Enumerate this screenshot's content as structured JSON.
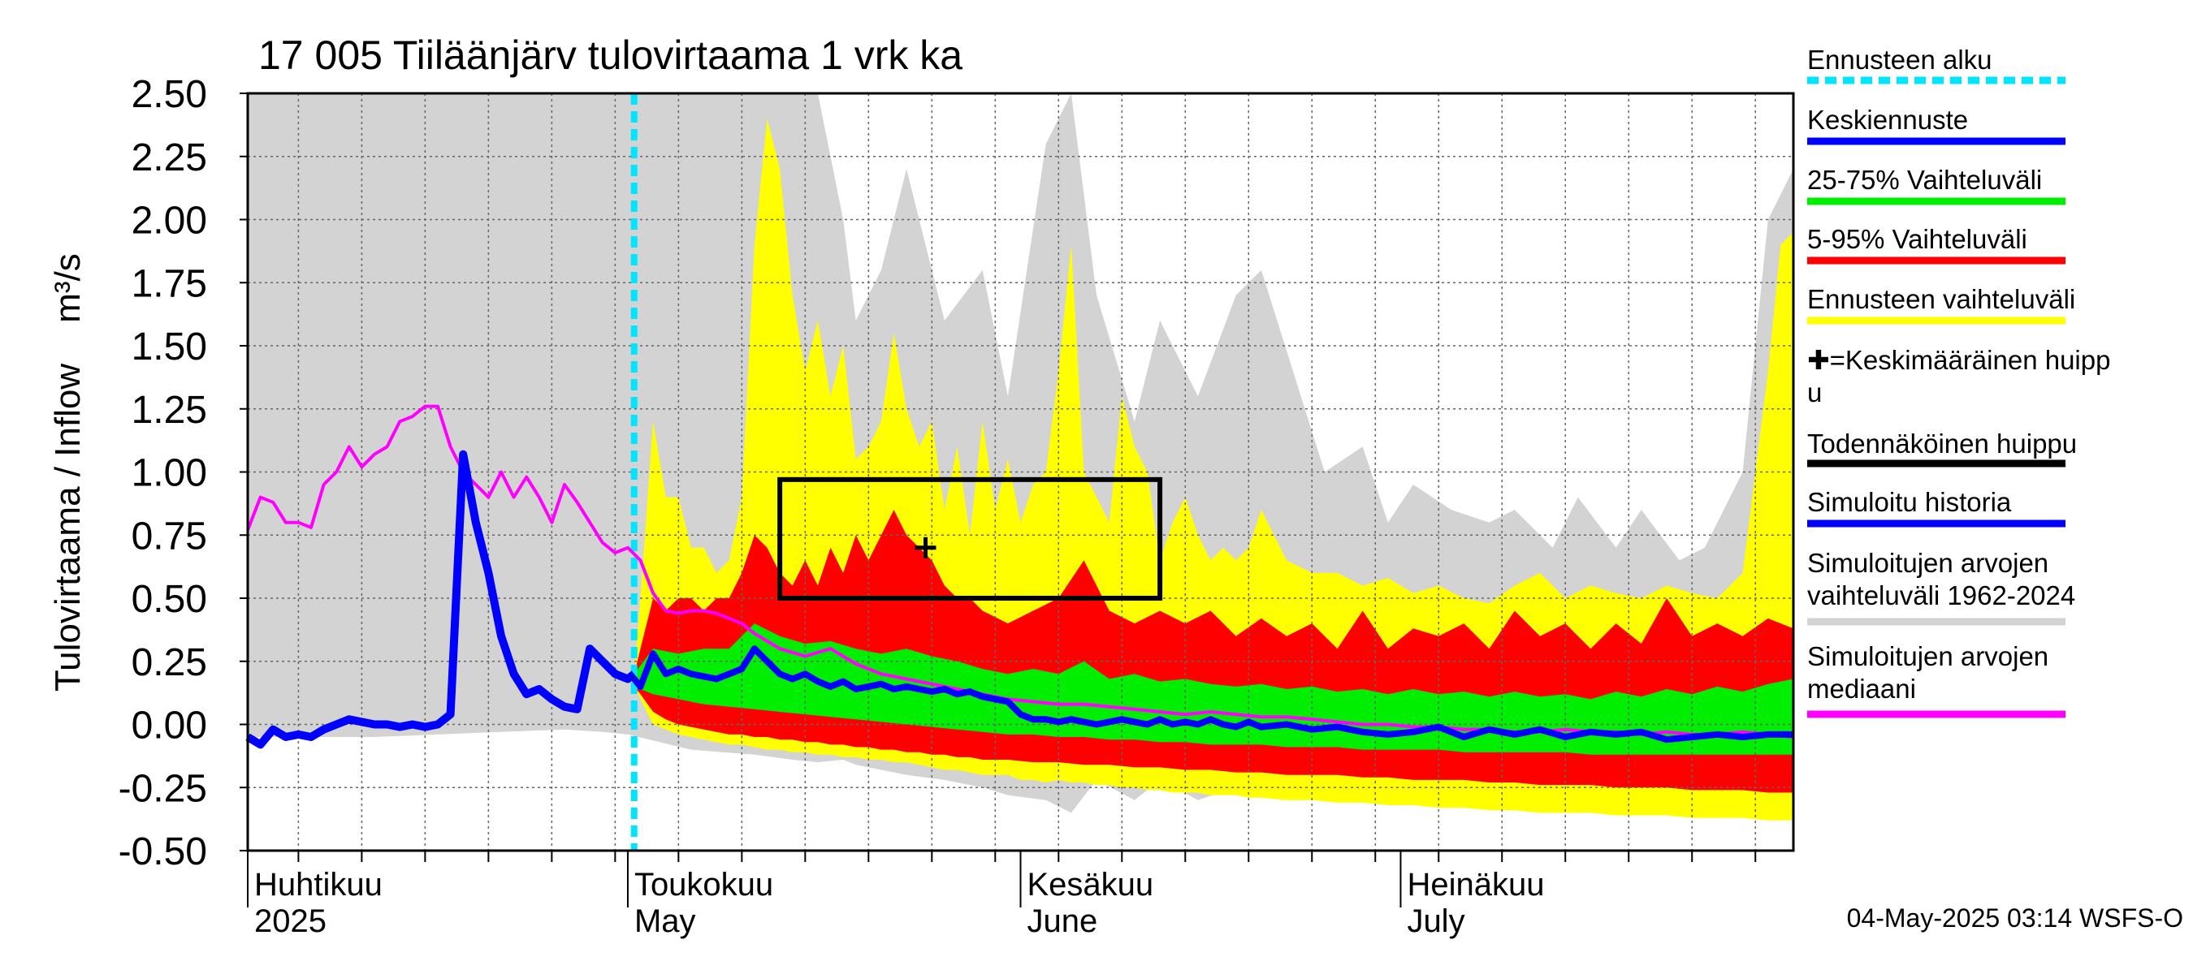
{
  "chart_data": {
    "type": "area",
    "title": "17 005 Tiilaanjarv tulovirtaama 1 vrk ka",
    "title_display": "17 005 Tiiläänjärv tulovirtaama 1 vrk ka",
    "ylabel": "Tulovirtaama / Inflow",
    "yunit": "m³/s",
    "ylim": [
      -0.5,
      2.5
    ],
    "yticks": [
      "2.50",
      "2.25",
      "2.00",
      "1.75",
      "1.50",
      "1.25",
      "1.00",
      "0.75",
      "0.50",
      "0.25",
      "0.00",
      "-0.25",
      "-0.50"
    ],
    "x_day_range": [
      0,
      122
    ],
    "x_start_date": "2025-04-01",
    "month_labels": [
      {
        "fi": "Huhtikuu",
        "en": "2025",
        "day": 0
      },
      {
        "fi": "Toukokuu",
        "en": "May",
        "day": 30
      },
      {
        "fi": "Kesäkuu",
        "en": "June",
        "day": 61
      },
      {
        "fi": "Heinäkuu",
        "en": "July",
        "day": 91
      }
    ],
    "forecast_start_day": 30.5,
    "series": [
      {
        "name": "Simuloitujen arvojen vaihteluväli 1962-2024",
        "kind": "band",
        "color": "#d3d3d3",
        "x": [
          0,
          5,
          10,
          15,
          20,
          25,
          28,
          30,
          35,
          40,
          43,
          45,
          47,
          48,
          50,
          52,
          55,
          58,
          60,
          63,
          65,
          67,
          70,
          72,
          75,
          78,
          80,
          85,
          88,
          90,
          92,
          95,
          98,
          100,
          103,
          105,
          108,
          110,
          113,
          115,
          118,
          120,
          122
        ],
        "upper": [
          2.5,
          2.5,
          2.5,
          2.5,
          2.5,
          2.5,
          2.5,
          2.5,
          2.5,
          2.5,
          2.5,
          2.5,
          2.0,
          1.6,
          1.8,
          2.2,
          1.6,
          1.8,
          1.3,
          2.3,
          2.5,
          1.7,
          1.2,
          1.6,
          1.3,
          1.7,
          1.8,
          1.0,
          1.1,
          0.8,
          0.95,
          0.85,
          0.8,
          0.85,
          0.7,
          0.9,
          0.7,
          0.85,
          0.65,
          0.7,
          1.0,
          2.0,
          2.2
        ],
        "lower": [
          -0.05,
          -0.05,
          -0.05,
          -0.04,
          -0.03,
          -0.02,
          -0.03,
          -0.04,
          -0.1,
          -0.12,
          -0.14,
          -0.15,
          -0.14,
          -0.16,
          -0.18,
          -0.2,
          -0.22,
          -0.25,
          -0.28,
          -0.3,
          -0.35,
          -0.22,
          -0.3,
          -0.22,
          -0.3,
          -0.25,
          -0.2,
          -0.25,
          -0.3,
          -0.22,
          -0.25,
          -0.28,
          -0.3,
          -0.2,
          -0.25,
          -0.28,
          -0.25,
          -0.22,
          -0.3,
          -0.25,
          -0.32,
          -0.22,
          -0.28
        ]
      },
      {
        "name": "Ennusteen vaihteluväli",
        "kind": "band",
        "color": "#ffff00",
        "x": [
          30.5,
          31,
          32,
          33,
          34,
          35,
          36,
          37,
          38,
          39,
          40,
          41,
          42,
          43,
          44,
          45,
          46,
          47,
          48,
          49,
          50,
          51,
          52,
          53,
          54,
          55,
          56,
          57,
          58,
          59,
          60,
          61,
          62,
          63,
          64,
          65,
          66,
          67,
          68,
          69,
          70,
          71,
          72,
          73,
          74,
          75,
          76,
          77,
          78,
          79,
          80,
          82,
          84,
          86,
          88,
          90,
          92,
          94,
          96,
          98,
          100,
          102,
          104,
          106,
          108,
          110,
          112,
          114,
          116,
          118,
          120,
          121,
          122
        ],
        "upper": [
          0.2,
          0.5,
          1.2,
          0.9,
          0.9,
          0.7,
          0.7,
          0.6,
          0.65,
          0.9,
          1.9,
          2.4,
          2.2,
          1.7,
          1.4,
          1.6,
          1.3,
          1.5,
          1.05,
          1.1,
          1.2,
          1.55,
          1.25,
          1.1,
          1.2,
          0.85,
          1.1,
          0.75,
          1.2,
          0.85,
          1.05,
          0.8,
          0.95,
          1.0,
          1.4,
          1.9,
          1.0,
          0.9,
          0.8,
          1.3,
          1.1,
          1.0,
          0.65,
          0.8,
          0.9,
          0.75,
          0.65,
          0.7,
          0.65,
          0.7,
          0.85,
          0.65,
          0.6,
          0.6,
          0.55,
          0.58,
          0.52,
          0.55,
          0.5,
          0.48,
          0.55,
          0.6,
          0.5,
          0.55,
          0.52,
          0.5,
          0.55,
          0.52,
          0.5,
          0.6,
          1.4,
          1.9,
          1.95
        ],
        "lower": [
          0.15,
          0.1,
          0.0,
          -0.02,
          -0.04,
          -0.05,
          -0.06,
          -0.07,
          -0.08,
          -0.08,
          -0.09,
          -0.1,
          -0.1,
          -0.11,
          -0.11,
          -0.12,
          -0.12,
          -0.13,
          -0.13,
          -0.14,
          -0.14,
          -0.15,
          -0.15,
          -0.16,
          -0.17,
          -0.18,
          -0.18,
          -0.19,
          -0.2,
          -0.2,
          -0.2,
          -0.22,
          -0.22,
          -0.23,
          -0.22,
          -0.23,
          -0.23,
          -0.24,
          -0.24,
          -0.25,
          -0.25,
          -0.26,
          -0.26,
          -0.27,
          -0.27,
          -0.27,
          -0.28,
          -0.28,
          -0.28,
          -0.29,
          -0.29,
          -0.3,
          -0.3,
          -0.31,
          -0.31,
          -0.32,
          -0.32,
          -0.33,
          -0.33,
          -0.34,
          -0.34,
          -0.35,
          -0.35,
          -0.35,
          -0.36,
          -0.36,
          -0.36,
          -0.37,
          -0.37,
          -0.37,
          -0.38,
          -0.38,
          -0.38
        ]
      },
      {
        "name": "5-95% Vaihteluväli",
        "kind": "band",
        "color": "#ff0000",
        "x": [
          30.5,
          31,
          32,
          33,
          34,
          35,
          36,
          37,
          38,
          39,
          40,
          41,
          42,
          43,
          44,
          45,
          46,
          47,
          48,
          49,
          50,
          51,
          52,
          53,
          54,
          55,
          56,
          57,
          58,
          60,
          62,
          64,
          66,
          68,
          70,
          72,
          74,
          76,
          78,
          80,
          82,
          84,
          86,
          88,
          90,
          92,
          94,
          96,
          98,
          100,
          102,
          104,
          106,
          108,
          110,
          112,
          114,
          116,
          118,
          120,
          122
        ],
        "upper": [
          0.2,
          0.3,
          0.5,
          0.45,
          0.5,
          0.5,
          0.45,
          0.5,
          0.5,
          0.6,
          0.75,
          0.7,
          0.6,
          0.55,
          0.65,
          0.55,
          0.7,
          0.6,
          0.75,
          0.65,
          0.75,
          0.85,
          0.75,
          0.7,
          0.65,
          0.55,
          0.5,
          0.5,
          0.45,
          0.4,
          0.45,
          0.5,
          0.65,
          0.45,
          0.4,
          0.45,
          0.4,
          0.45,
          0.35,
          0.42,
          0.35,
          0.4,
          0.3,
          0.45,
          0.3,
          0.38,
          0.35,
          0.4,
          0.3,
          0.45,
          0.35,
          0.4,
          0.3,
          0.4,
          0.32,
          0.5,
          0.35,
          0.4,
          0.35,
          0.42,
          0.38
        ],
        "lower": [
          0.15,
          0.12,
          0.05,
          0.02,
          0.0,
          -0.01,
          -0.02,
          -0.03,
          -0.04,
          -0.04,
          -0.05,
          -0.05,
          -0.06,
          -0.06,
          -0.07,
          -0.07,
          -0.08,
          -0.08,
          -0.09,
          -0.09,
          -0.1,
          -0.1,
          -0.11,
          -0.11,
          -0.12,
          -0.12,
          -0.13,
          -0.13,
          -0.14,
          -0.14,
          -0.15,
          -0.15,
          -0.16,
          -0.16,
          -0.17,
          -0.17,
          -0.18,
          -0.18,
          -0.19,
          -0.19,
          -0.2,
          -0.2,
          -0.2,
          -0.21,
          -0.21,
          -0.22,
          -0.22,
          -0.22,
          -0.23,
          -0.23,
          -0.24,
          -0.24,
          -0.24,
          -0.25,
          -0.25,
          -0.25,
          -0.26,
          -0.26,
          -0.26,
          -0.27,
          -0.27
        ]
      },
      {
        "name": "25-75% Vaihteluväli",
        "kind": "band",
        "color": "#00ee00",
        "x": [
          30.5,
          32,
          34,
          36,
          38,
          40,
          42,
          44,
          46,
          48,
          50,
          52,
          54,
          56,
          58,
          60,
          62,
          64,
          66,
          68,
          70,
          72,
          74,
          76,
          78,
          80,
          82,
          84,
          86,
          88,
          90,
          92,
          94,
          96,
          98,
          100,
          102,
          104,
          106,
          108,
          110,
          112,
          114,
          116,
          118,
          120,
          122
        ],
        "upper": [
          0.2,
          0.3,
          0.28,
          0.3,
          0.3,
          0.4,
          0.35,
          0.32,
          0.33,
          0.3,
          0.28,
          0.3,
          0.27,
          0.25,
          0.22,
          0.2,
          0.22,
          0.2,
          0.25,
          0.18,
          0.2,
          0.17,
          0.18,
          0.16,
          0.15,
          0.16,
          0.14,
          0.15,
          0.13,
          0.14,
          0.12,
          0.14,
          0.12,
          0.13,
          0.11,
          0.13,
          0.11,
          0.12,
          0.1,
          0.13,
          0.11,
          0.14,
          0.12,
          0.15,
          0.13,
          0.16,
          0.18
        ],
        "lower": [
          0.15,
          0.12,
          0.1,
          0.08,
          0.07,
          0.06,
          0.05,
          0.04,
          0.03,
          0.02,
          0.01,
          0.0,
          -0.01,
          -0.02,
          -0.03,
          -0.04,
          -0.04,
          -0.05,
          -0.05,
          -0.06,
          -0.06,
          -0.07,
          -0.07,
          -0.08,
          -0.08,
          -0.08,
          -0.09,
          -0.09,
          -0.09,
          -0.1,
          -0.1,
          -0.1,
          -0.1,
          -0.11,
          -0.11,
          -0.11,
          -0.11,
          -0.11,
          -0.12,
          -0.12,
          -0.12,
          -0.12,
          -0.12,
          -0.12,
          -0.12,
          -0.12,
          -0.12
        ]
      },
      {
        "name": "Simuloitujen arvojen mediaani",
        "kind": "line",
        "color": "#ff00ff",
        "x": [
          0,
          1,
          2,
          3,
          4,
          5,
          6,
          7,
          8,
          9,
          10,
          11,
          12,
          13,
          14,
          15,
          16,
          17,
          18,
          19,
          20,
          21,
          22,
          23,
          24,
          25,
          26,
          27,
          28,
          29,
          30,
          31,
          32,
          33,
          34,
          35,
          36,
          37,
          38,
          39,
          40,
          42,
          44,
          46,
          48,
          50,
          52,
          54,
          56,
          58,
          60,
          62,
          64,
          66,
          68,
          70,
          72,
          74,
          76,
          78,
          80,
          82,
          84,
          86,
          88,
          90,
          92,
          94,
          96,
          98,
          100,
          102,
          104,
          106,
          108,
          110,
          112,
          114,
          116,
          118,
          120,
          122
        ],
        "y": [
          0.77,
          0.9,
          0.88,
          0.8,
          0.8,
          0.78,
          0.95,
          1.0,
          1.1,
          1.02,
          1.07,
          1.1,
          1.2,
          1.22,
          1.26,
          1.26,
          1.1,
          1.0,
          0.95,
          0.9,
          1.0,
          0.9,
          0.98,
          0.9,
          0.8,
          0.95,
          0.88,
          0.8,
          0.72,
          0.68,
          0.7,
          0.65,
          0.52,
          0.45,
          0.44,
          0.45,
          0.45,
          0.44,
          0.42,
          0.4,
          0.36,
          0.3,
          0.27,
          0.3,
          0.24,
          0.2,
          0.18,
          0.16,
          0.14,
          0.12,
          0.1,
          0.09,
          0.08,
          0.08,
          0.07,
          0.06,
          0.05,
          0.04,
          0.05,
          0.04,
          0.03,
          0.03,
          0.02,
          0.01,
          0.0,
          0.0,
          -0.01,
          -0.01,
          -0.02,
          -0.02,
          -0.03,
          -0.03,
          -0.02,
          -0.03,
          -0.03,
          -0.04,
          -0.03,
          -0.04,
          -0.04,
          -0.03,
          -0.04,
          -0.05
        ]
      },
      {
        "name": "Simuloitu historia",
        "kind": "line",
        "color": "#0000ff",
        "x": [
          0,
          1,
          2,
          3,
          4,
          5,
          6,
          7,
          8,
          9,
          10,
          11,
          12,
          13,
          14,
          15,
          16,
          17,
          18,
          19,
          20,
          21,
          22,
          23,
          24,
          25,
          26,
          27,
          28,
          29,
          30,
          30.5
        ],
        "y": [
          -0.05,
          -0.08,
          -0.02,
          -0.05,
          -0.04,
          -0.05,
          -0.02,
          0.0,
          0.02,
          0.01,
          0.0,
          0.0,
          -0.01,
          0.0,
          -0.01,
          0.0,
          0.04,
          1.07,
          0.8,
          0.6,
          0.35,
          0.2,
          0.12,
          0.14,
          0.1,
          0.07,
          0.06,
          0.3,
          0.25,
          0.2,
          0.18,
          0.2
        ]
      },
      {
        "name": "Keskiennuste",
        "kind": "line",
        "color": "#0000ff",
        "x": [
          30.5,
          31,
          32,
          33,
          34,
          35,
          36,
          37,
          38,
          39,
          40,
          41,
          42,
          43,
          44,
          45,
          46,
          47,
          48,
          49,
          50,
          51,
          52,
          53,
          54,
          55,
          56,
          57,
          58,
          59,
          60,
          61,
          62,
          63,
          64,
          65,
          66,
          67,
          68,
          69,
          70,
          71,
          72,
          73,
          74,
          75,
          76,
          77,
          78,
          79,
          80,
          82,
          84,
          86,
          88,
          90,
          92,
          94,
          96,
          98,
          100,
          102,
          104,
          106,
          108,
          110,
          112,
          114,
          116,
          118,
          120,
          122
        ],
        "y": [
          0.18,
          0.15,
          0.28,
          0.2,
          0.22,
          0.2,
          0.19,
          0.18,
          0.2,
          0.22,
          0.3,
          0.25,
          0.2,
          0.18,
          0.2,
          0.17,
          0.15,
          0.17,
          0.14,
          0.15,
          0.16,
          0.14,
          0.15,
          0.14,
          0.13,
          0.14,
          0.12,
          0.13,
          0.11,
          0.1,
          0.09,
          0.04,
          0.02,
          0.02,
          0.01,
          0.02,
          0.01,
          0.0,
          0.01,
          0.02,
          0.01,
          0.0,
          0.02,
          0.0,
          0.01,
          0.0,
          0.02,
          0.0,
          -0.01,
          0.01,
          -0.01,
          0.0,
          -0.02,
          -0.01,
          -0.03,
          -0.04,
          -0.03,
          -0.01,
          -0.05,
          -0.02,
          -0.04,
          -0.02,
          -0.05,
          -0.03,
          -0.04,
          -0.03,
          -0.06,
          -0.05,
          -0.04,
          -0.05,
          -0.04,
          -0.04
        ]
      }
    ],
    "probable_peak_box": {
      "x_from": 42,
      "x_to": 72,
      "y_from": 0.5,
      "y_to": 0.97
    },
    "mean_peak": {
      "x": 53.5,
      "y": 0.7
    },
    "legend": [
      {
        "label": "Ennusteen alku",
        "color": "#00e5ff",
        "style": "dotted"
      },
      {
        "label": "Keskiennuste",
        "color": "#0000ff",
        "style": "line"
      },
      {
        "label": "25-75% Vaihteluväli",
        "color": "#00ee00",
        "style": "line"
      },
      {
        "label": "5-95% Vaihteluväli",
        "color": "#ff0000",
        "style": "line"
      },
      {
        "label": "Ennusteen vaihteluväli",
        "color": "#ffff00",
        "style": "line"
      },
      {
        "label": "✚=Keskimääräinen huipp",
        "label2": "u",
        "color": "#000000",
        "style": "none"
      },
      {
        "label": "Todennäköinen huippu",
        "color": "#000000",
        "style": "line"
      },
      {
        "label": "Simuloitu historia",
        "color": "#0000ff",
        "style": "line"
      },
      {
        "label": "Simuloitujen arvojen",
        "label2": "vaihteluväli 1962-2024",
        "color": "#d3d3d3",
        "style": "line"
      },
      {
        "label": "Simuloitujen arvojen",
        "label2": "mediaani",
        "color": "#ff00ff",
        "style": "line"
      }
    ],
    "footer": "04-May-2025 03:14 WSFS-O"
  }
}
